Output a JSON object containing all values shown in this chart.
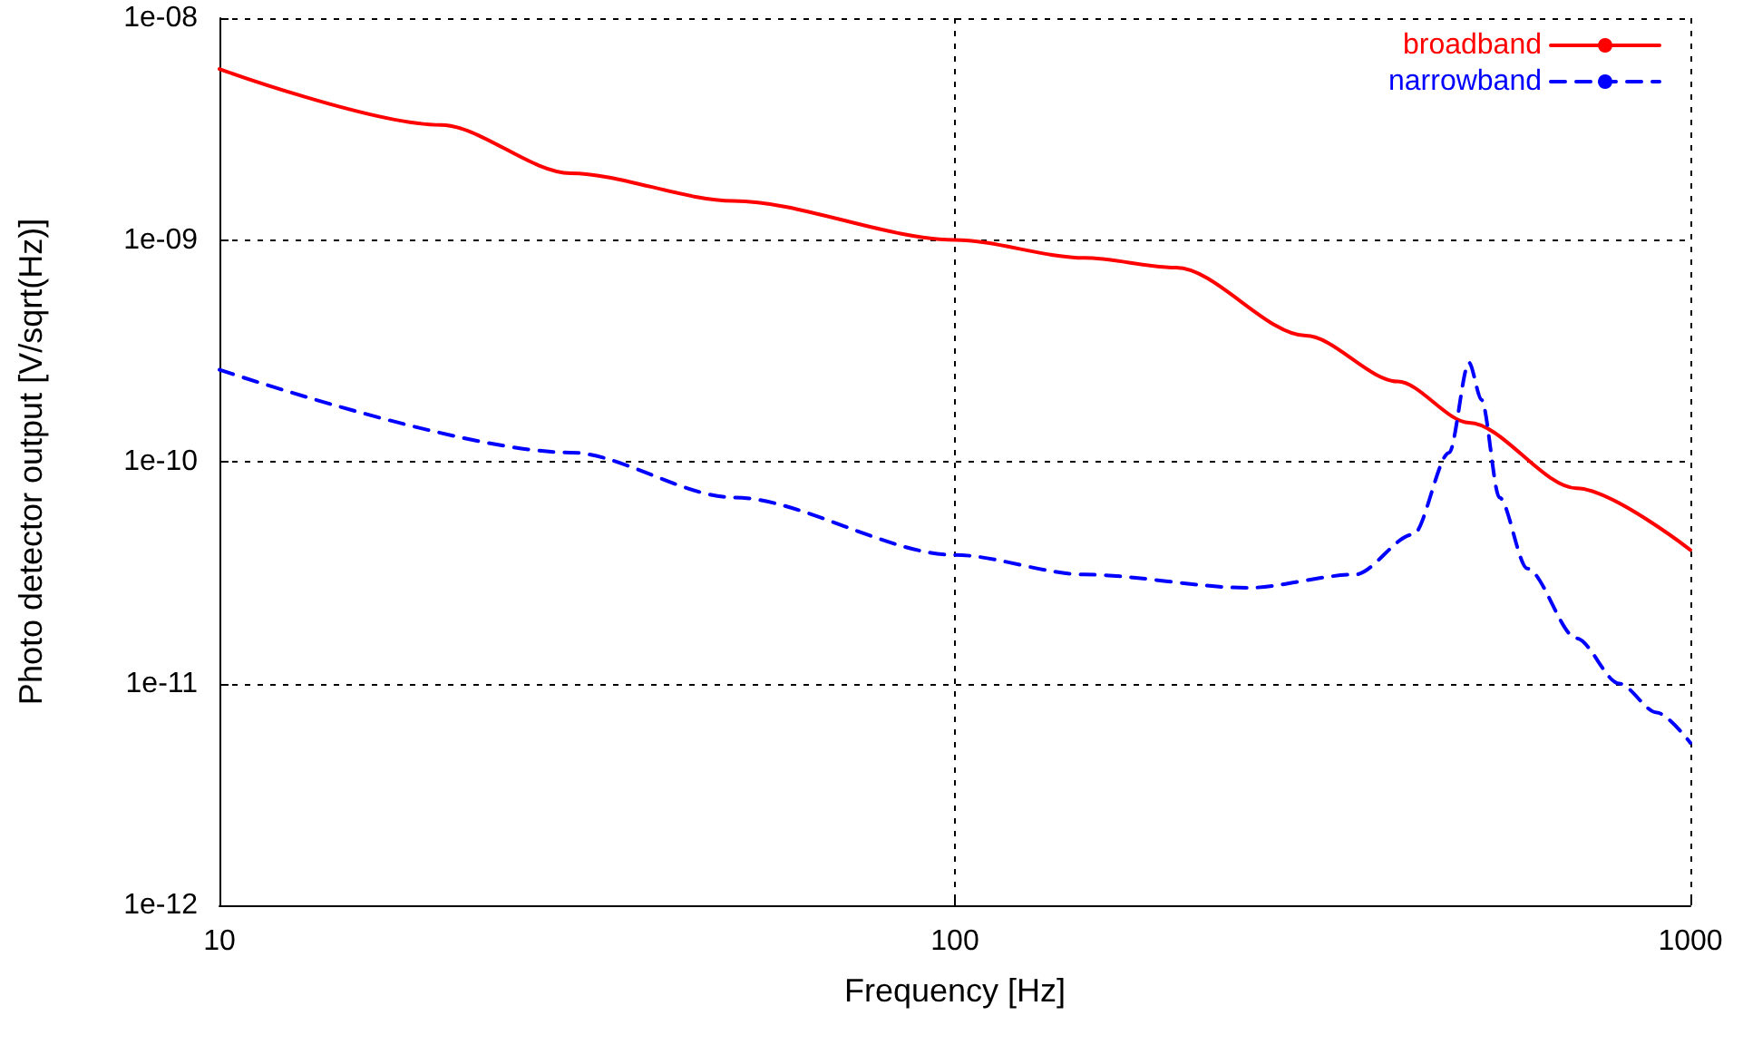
{
  "chart_data": {
    "type": "line",
    "xlabel": "Frequency [Hz]",
    "ylabel": "Photo detector output [V/sqrt(Hz)]",
    "log": "xy",
    "grid": true,
    "legend": "top right",
    "marker": "none",
    "xlim": [
      10,
      1000
    ],
    "xticks": [
      10,
      100,
      1000
    ],
    "ylim": [
      1e-12,
      1e-08
    ],
    "yticks": [
      {
        "value": 1e-12,
        "label": "1e-12"
      },
      {
        "value": 1e-11,
        "label": "1e-11"
      },
      {
        "value": 1e-10,
        "label": "1e-10"
      },
      {
        "value": 1e-09,
        "label": "1e-09"
      },
      {
        "value": 1e-08,
        "label": "1e-08"
      }
    ],
    "series": [
      {
        "name": "broadband",
        "color": "#ff0000",
        "line_style": "solid",
        "x": [
          10,
          20,
          30,
          50,
          100,
          150,
          200,
          300,
          400,
          500,
          700,
          1000
        ],
        "values": [
          5.9e-09,
          3.3e-09,
          2e-09,
          1.5e-09,
          1e-09,
          8.3e-10,
          7.5e-10,
          3.7e-10,
          2.3e-10,
          1.5e-10,
          7.6e-11,
          4e-11
        ]
      },
      {
        "name": "narrowband",
        "color": "#0000ff",
        "line_style": "dashed",
        "x": [
          10,
          30,
          50,
          100,
          150,
          250,
          350,
          420,
          470,
          500,
          520,
          550,
          600,
          700,
          800,
          900,
          1000
        ],
        "values": [
          2.6e-10,
          1.1e-10,
          6.9e-11,
          3.8e-11,
          3.1e-11,
          2.7e-11,
          3.1e-11,
          4.7e-11,
          1.1e-10,
          2.8e-10,
          1.9e-10,
          6.9e-11,
          3.3e-11,
          1.6e-11,
          1e-11,
          7.4e-12,
          5.4e-12
        ]
      }
    ]
  }
}
